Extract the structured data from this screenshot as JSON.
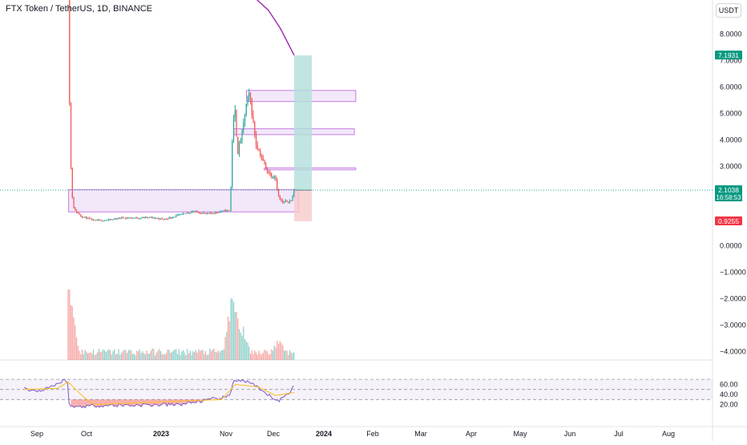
{
  "header": {
    "title": "FTX Token / TetherUS, 1D, BINANCE",
    "currency": "USDT"
  },
  "colors": {
    "up": "#26a69a",
    "down": "#ef5350",
    "zone_fill": "#e8d5f5",
    "zone_stroke": "#c77de0",
    "target_fill": "#b2dfdb",
    "stop_fill": "#f8c9cb",
    "rsi_line": "#7e57c2",
    "rsi_ma": "#f9c12e",
    "trend_line": "#9c27b0"
  },
  "price_scale": {
    "ticks": [
      "8.0000",
      "7.0000",
      "6.0000",
      "5.0000",
      "4.0000",
      "3.0000",
      "0.0000",
      "−1.0000",
      "−2.0000",
      "−3.0000",
      "−4.0000"
    ],
    "tick_values": [
      8,
      7,
      6,
      5,
      4,
      3,
      0,
      -1,
      -2,
      -3,
      -4
    ],
    "badges": {
      "target": {
        "value": 7.1931,
        "label": "7.1931"
      },
      "last": {
        "value": 2.1038,
        "label": "2.1038",
        "countdown": "16:58:53"
      },
      "stop": {
        "value": 0.9255,
        "label": "0.9255"
      }
    }
  },
  "rsi_scale": {
    "ticks": [
      "60.00",
      "40.00",
      "20.00"
    ],
    "tick_values": [
      60,
      40,
      20
    ],
    "upper_band": 70,
    "lower_band": 30,
    "mid_band": 50
  },
  "time_axis": {
    "labels": [
      "Sep",
      "Oct",
      "2023",
      "Nov",
      "Dec",
      "2024",
      "Feb",
      "Mar",
      "Apr",
      "May",
      "Jun",
      "Jul",
      "Aug"
    ]
  },
  "chart_data": {
    "type": "candlestick",
    "title": "FTX Token / TetherUS, 1D, BINANCE",
    "symbol": "FTT/USDT",
    "interval": "1D",
    "exchange": "BINANCE",
    "ylim": [
      -4.3,
      9.0
    ],
    "grid": false,
    "last_price": 2.1038,
    "price_path": [
      {
        "date": "2022-11-07",
        "close": 22.0
      },
      {
        "date": "2022-11-10",
        "close": 5.5
      },
      {
        "date": "2022-11-14",
        "close": 2.1
      },
      {
        "date": "2022-11-20",
        "close": 1.35
      },
      {
        "date": "2022-12-05",
        "close": 1.12
      },
      {
        "date": "2023-01-01",
        "close": 0.95
      },
      {
        "date": "2023-02-01",
        "close": 0.97
      },
      {
        "date": "2023-03-01",
        "close": 1.06
      },
      {
        "date": "2023-04-01",
        "close": 1.05
      },
      {
        "date": "2023-05-01",
        "close": 1.07
      },
      {
        "date": "2023-06-01",
        "close": 1.0
      },
      {
        "date": "2023-07-01",
        "close": 1.15
      },
      {
        "date": "2023-08-01",
        "close": 1.3
      },
      {
        "date": "2023-09-01",
        "close": 1.2
      },
      {
        "date": "2023-10-01",
        "close": 1.3
      },
      {
        "date": "2023-10-20",
        "close": 1.35
      },
      {
        "date": "2023-10-25",
        "close": 4.3
      },
      {
        "date": "2023-10-30",
        "close": 5.2
      },
      {
        "date": "2023-11-05",
        "close": 3.5
      },
      {
        "date": "2023-11-15",
        "close": 4.3
      },
      {
        "date": "2023-11-25",
        "close": 5.5
      },
      {
        "date": "2023-12-01",
        "close": 5.7
      },
      {
        "date": "2023-12-08",
        "close": 4.7
      },
      {
        "date": "2023-12-15",
        "close": 3.8
      },
      {
        "date": "2023-12-25",
        "close": 3.4
      },
      {
        "date": "2024-01-05",
        "close": 2.9
      },
      {
        "date": "2024-01-12",
        "close": 2.75
      },
      {
        "date": "2024-01-18",
        "close": 2.6
      },
      {
        "date": "2024-01-24",
        "close": 2.7
      },
      {
        "date": "2024-02-01",
        "close": 1.8
      },
      {
        "date": "2024-02-10",
        "close": 1.62
      },
      {
        "date": "2024-02-20",
        "close": 1.7
      },
      {
        "date": "2024-02-28",
        "close": 1.7
      },
      {
        "date": "2024-03-05",
        "close": 2.1
      }
    ],
    "volume_peaks": [
      {
        "date": "2022-11-10",
        "rel": 1.0
      },
      {
        "date": "2023-10-26",
        "rel": 0.92
      },
      {
        "date": "2023-11-15",
        "rel": 0.42
      },
      {
        "date": "2024-02-01",
        "rel": 0.28
      }
    ],
    "rsi_path": [
      {
        "date": "2022-08-05",
        "rsi": 52
      },
      {
        "date": "2022-09-01",
        "rsi": 46
      },
      {
        "date": "2022-10-01",
        "rsi": 56
      },
      {
        "date": "2022-11-05",
        "rsi": 70
      },
      {
        "date": "2022-11-10",
        "rsi": 15
      },
      {
        "date": "2023-01-01",
        "rsi": 18
      },
      {
        "date": "2023-07-01",
        "rsi": 20
      },
      {
        "date": "2023-10-20",
        "rsi": 36
      },
      {
        "date": "2023-10-27",
        "rsi": 70
      },
      {
        "date": "2023-12-01",
        "rsi": 64
      },
      {
        "date": "2024-01-01",
        "rsi": 43
      },
      {
        "date": "2024-02-01",
        "rsi": 27
      },
      {
        "date": "2024-02-25",
        "rsi": 45
      },
      {
        "date": "2024-03-05",
        "rsi": 62
      }
    ],
    "rsi_ma_path": [
      {
        "date": "2022-08-05",
        "rsi": 50
      },
      {
        "date": "2022-10-15",
        "rsi": 52
      },
      {
        "date": "2022-11-07",
        "rsi": 65
      },
      {
        "date": "2022-12-10",
        "rsi": 35
      },
      {
        "date": "2023-01-01",
        "rsi": 20
      },
      {
        "date": "2023-10-01",
        "rsi": 30
      },
      {
        "date": "2023-11-01",
        "rsi": 60
      },
      {
        "date": "2023-12-20",
        "rsi": 55
      },
      {
        "date": "2024-01-25",
        "rsi": 38
      },
      {
        "date": "2024-03-05",
        "rsi": 44
      }
    ],
    "zones": [
      {
        "from": "2022-11-08",
        "to": "2024-03-15",
        "bottom": 1.28,
        "top": 2.12
      },
      {
        "from": "2023-11-24",
        "to": "2024-07-15",
        "bottom": 5.45,
        "top": 5.87
      },
      {
        "from": "2023-10-28",
        "to": "2024-07-12",
        "bottom": 4.2,
        "top": 4.42
      },
      {
        "from": "2024-01-01",
        "to": "2024-07-15",
        "bottom": 2.87,
        "top": 2.94
      }
    ],
    "position": {
      "from": "2024-03-05",
      "to": "2024-04-12",
      "entry": 2.1038,
      "target": 7.1931,
      "stop": 0.9255
    },
    "trend_line": [
      {
        "date": "2023-12-10",
        "value": 9.4
      },
      {
        "date": "2024-01-10",
        "value": 8.9
      },
      {
        "date": "2024-02-05",
        "value": 8.2
      },
      {
        "date": "2024-03-05",
        "value": 7.2
      }
    ]
  }
}
